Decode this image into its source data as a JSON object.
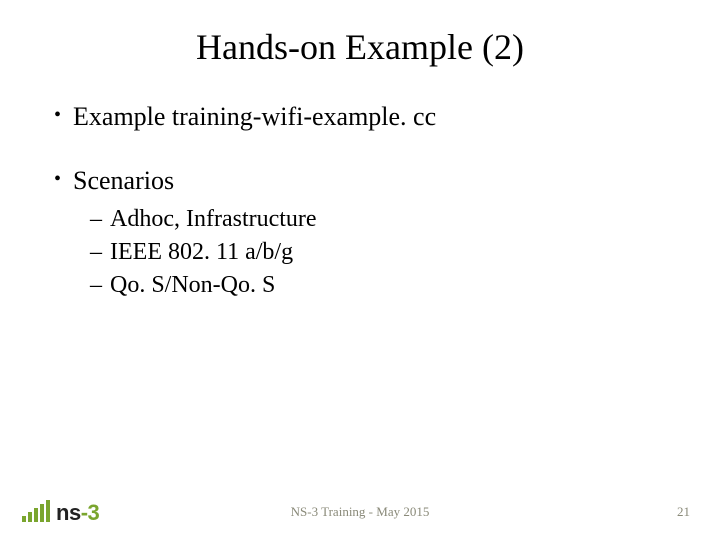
{
  "title": "Hands-on Example (2)",
  "bullets": {
    "b1": "Example training-wifi-example. cc",
    "b2": "Scenarios",
    "sub1": "Adhoc, Infrastructure",
    "sub2": "IEEE 802. 11 a/b/g",
    "sub3": "Qo. S/Non-Qo. S"
  },
  "logo": {
    "prefix": "ns",
    "accent": "-3"
  },
  "footer": {
    "center": "NS-3 Training - May 2015",
    "page": "21"
  },
  "colors": {
    "accent": "#7aa52e",
    "footer_text": "#8a8a79",
    "text": "#000000",
    "background": "#ffffff"
  }
}
